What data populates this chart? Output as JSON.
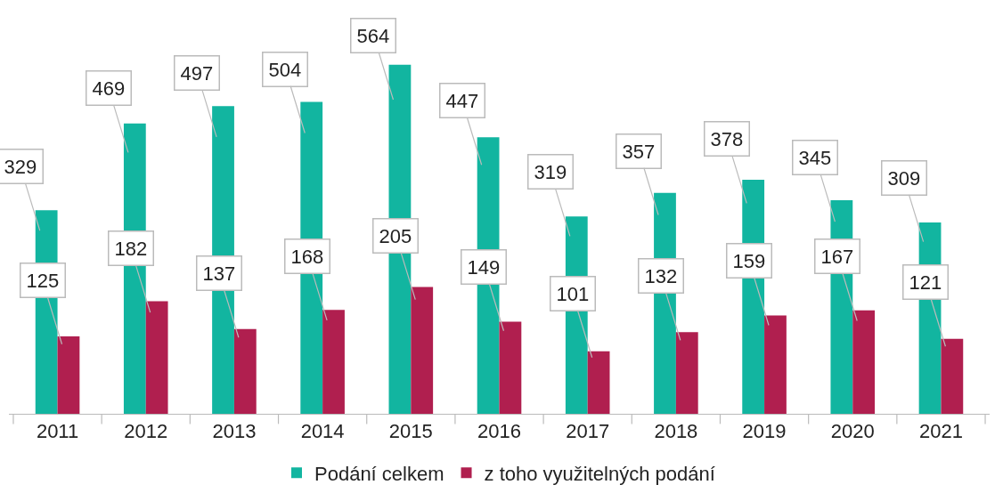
{
  "chart_data": {
    "type": "bar",
    "categories": [
      "2011",
      "2012",
      "2013",
      "2014",
      "2015",
      "2016",
      "2017",
      "2018",
      "2019",
      "2020",
      "2021"
    ],
    "series": [
      {
        "name": "Podání celkem",
        "color": "#12b5a0",
        "values": [
          329,
          469,
          497,
          504,
          564,
          447,
          319,
          357,
          378,
          345,
          309
        ]
      },
      {
        "name": "z toho využitelných podání",
        "color": "#b01f4f",
        "values": [
          125,
          182,
          137,
          168,
          205,
          149,
          101,
          132,
          159,
          167,
          121
        ]
      }
    ],
    "data_labels": true,
    "legend": "bottom",
    "grid": false
  }
}
